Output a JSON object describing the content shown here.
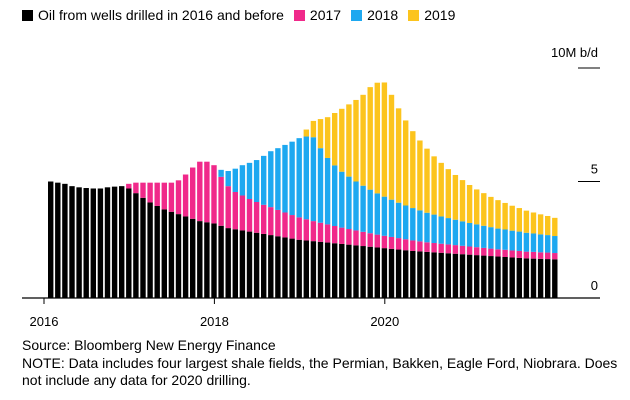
{
  "chart_data": {
    "type": "bar",
    "stacked": true,
    "title": "",
    "xlabel": "",
    "ylabel": "",
    "unit": "10M b/d",
    "ylim": [
      0,
      10
    ],
    "yticks": [
      0,
      5
    ],
    "xticks": [
      "2016",
      "2018",
      "2020"
    ],
    "x_start": "2016-01",
    "grid": false,
    "legend_placement": "top",
    "series": [
      {
        "name": "Oil from wells drilled in 2016 and before",
        "color": "#000000",
        "values": [
          5.0,
          4.95,
          4.9,
          4.8,
          4.75,
          4.72,
          4.7,
          4.7,
          4.75,
          4.78,
          4.8,
          4.7,
          4.5,
          4.3,
          4.1,
          3.95,
          3.8,
          3.7,
          3.6,
          3.5,
          3.4,
          3.3,
          3.25,
          3.2,
          3.1,
          3.0,
          2.95,
          2.9,
          2.85,
          2.8,
          2.75,
          2.7,
          2.65,
          2.6,
          2.55,
          2.5,
          2.47,
          2.44,
          2.41,
          2.38,
          2.35,
          2.32,
          2.29,
          2.26,
          2.23,
          2.2,
          2.17,
          2.14,
          2.11,
          2.08,
          2.05,
          2.02,
          2.0,
          1.98,
          1.96,
          1.94,
          1.92,
          1.9,
          1.88,
          1.86,
          1.84,
          1.82,
          1.8,
          1.78,
          1.76,
          1.74,
          1.72,
          1.7,
          1.69,
          1.68,
          1.67,
          1.66
        ]
      },
      {
        "name": "2017",
        "color": "#f0298a",
        "values": [
          0,
          0,
          0,
          0,
          0,
          0,
          0,
          0,
          0,
          0,
          0,
          0.2,
          0.45,
          0.65,
          0.85,
          1.0,
          1.15,
          1.25,
          1.45,
          1.8,
          2.2,
          2.55,
          2.6,
          2.5,
          2.1,
          1.8,
          1.6,
          1.5,
          1.4,
          1.32,
          1.25,
          1.2,
          1.13,
          1.07,
          1.01,
          0.96,
          0.91,
          0.86,
          0.82,
          0.78,
          0.74,
          0.7,
          0.67,
          0.64,
          0.61,
          0.58,
          0.55,
          0.53,
          0.51,
          0.49,
          0.47,
          0.45,
          0.43,
          0.41,
          0.4,
          0.39,
          0.38,
          0.37,
          0.36,
          0.35,
          0.34,
          0.33,
          0.32,
          0.31,
          0.31,
          0.3,
          0.3,
          0.29,
          0.29,
          0.28,
          0.28,
          0.27
        ]
      },
      {
        "name": "2018",
        "color": "#1da8f0",
        "values": [
          0,
          0,
          0,
          0,
          0,
          0,
          0,
          0,
          0,
          0,
          0,
          0,
          0,
          0,
          0,
          0,
          0,
          0,
          0,
          0,
          0,
          0,
          0,
          0,
          0.3,
          0.65,
          1.0,
          1.3,
          1.55,
          1.8,
          2.1,
          2.4,
          2.65,
          2.9,
          3.15,
          3.4,
          3.55,
          3.6,
          3.2,
          2.85,
          2.6,
          2.4,
          2.25,
          2.1,
          1.98,
          1.87,
          1.77,
          1.68,
          1.6,
          1.52,
          1.45,
          1.39,
          1.33,
          1.27,
          1.22,
          1.17,
          1.13,
          1.09,
          1.05,
          1.01,
          0.98,
          0.95,
          0.92,
          0.89,
          0.87,
          0.85,
          0.83,
          0.81,
          0.79,
          0.77,
          0.75,
          0.73
        ]
      },
      {
        "name": "2019",
        "color": "#fcc41d",
        "values": [
          0,
          0,
          0,
          0,
          0,
          0,
          0,
          0,
          0,
          0,
          0,
          0,
          0,
          0,
          0,
          0,
          0,
          0,
          0,
          0,
          0,
          0,
          0,
          0,
          0,
          0,
          0,
          0,
          0,
          0,
          0,
          0,
          0,
          0,
          0,
          0,
          0.3,
          0.7,
          1.25,
          1.75,
          2.25,
          2.7,
          3.1,
          3.5,
          3.9,
          4.4,
          4.75,
          4.9,
          4.5,
          4.05,
          3.65,
          3.3,
          3.0,
          2.75,
          2.5,
          2.3,
          2.1,
          1.92,
          1.77,
          1.63,
          1.5,
          1.4,
          1.3,
          1.22,
          1.14,
          1.07,
          1.01,
          0.95,
          0.9,
          0.86,
          0.82,
          0.78
        ]
      }
    ]
  },
  "legend": [
    {
      "label": "Oil from wells drilled in 2016 and before",
      "color": "#000000"
    },
    {
      "label": "2017",
      "color": "#f0298a"
    },
    {
      "label": "2018",
      "color": "#1da8f0"
    },
    {
      "label": "2019",
      "color": "#fcc41d"
    }
  ],
  "footer": {
    "source": "Source: Bloomberg New Energy Finance",
    "note": "NOTE: Data includes four largest shale fields, the Permian, Bakken, Eagle Ford, Niobrara. Does not include any data for 2020 drilling."
  }
}
